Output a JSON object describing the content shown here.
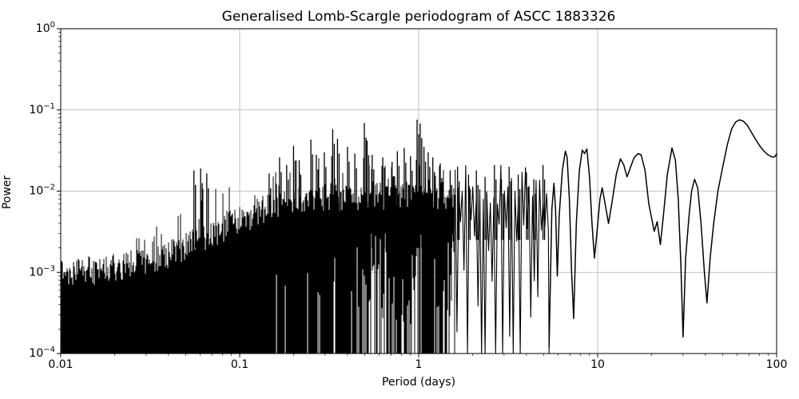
{
  "chart_data": {
    "type": "line",
    "title": "Generalised Lomb-Scargle periodogram of ASCC 1883326",
    "xlabel": "Period (days)",
    "ylabel": "Power",
    "xscale": "log",
    "yscale": "log",
    "xlim": [
      0.01,
      100
    ],
    "ylim": [
      0.0001,
      1
    ],
    "grid": true,
    "legend": "none",
    "line_color": "#000000",
    "grid_color": "#b0b0b0",
    "spine_color": "#000000",
    "background": "#ffffff",
    "x_ticks": [
      {
        "value": 0.01,
        "label": "0.01"
      },
      {
        "value": 0.1,
        "label": "0.1"
      },
      {
        "value": 1,
        "label": "1"
      },
      {
        "value": 10,
        "label": "10"
      },
      {
        "value": 100,
        "label": "100"
      }
    ],
    "y_ticks": [
      {
        "value": 1,
        "label": "10^0"
      },
      {
        "value": 0.1,
        "label": "10^-1"
      },
      {
        "value": 0.01,
        "label": "10^-2"
      },
      {
        "value": 0.001,
        "label": "10^-3"
      },
      {
        "value": 0.0001,
        "label": "10^-4"
      }
    ],
    "noise_region": {
      "x_range": [
        0.01,
        1.6
      ],
      "floor": 0.0001,
      "envelope": [
        [
          0.01,
          0.00085,
          0.0016
        ],
        [
          0.014,
          0.0009,
          0.002
        ],
        [
          0.02,
          0.001,
          0.0026
        ],
        [
          0.028,
          0.0012,
          0.0036
        ],
        [
          0.04,
          0.0015,
          0.0055
        ],
        [
          0.055,
          0.002,
          0.016
        ],
        [
          0.065,
          0.0024,
          0.018
        ],
        [
          0.08,
          0.003,
          0.014
        ],
        [
          0.1,
          0.0038,
          0.013
        ],
        [
          0.13,
          0.005,
          0.015
        ],
        [
          0.17,
          0.006,
          0.024
        ],
        [
          0.21,
          0.0065,
          0.03
        ],
        [
          0.26,
          0.007,
          0.034
        ],
        [
          0.33,
          0.0075,
          0.04
        ],
        [
          0.42,
          0.0075,
          0.03
        ],
        [
          0.52,
          0.008,
          0.034
        ],
        [
          0.65,
          0.0075,
          0.026
        ],
        [
          0.8,
          0.008,
          0.03
        ],
        [
          1.0,
          0.0085,
          0.04
        ],
        [
          1.25,
          0.008,
          0.026
        ],
        [
          1.6,
          0.0075,
          0.022
        ]
      ]
    },
    "transition_region": {
      "x_range": [
        1.6,
        5.35
      ],
      "top_range": [
        0.004,
        0.022
      ],
      "floor": 0.0001
    },
    "major_peaks": [
      [
        0.0555,
        0.018
      ],
      [
        0.0605,
        0.019
      ],
      [
        0.0655,
        0.0165
      ],
      [
        0.146,
        0.0165
      ],
      [
        0.167,
        0.026
      ],
      [
        0.183,
        0.021
      ],
      [
        0.2,
        0.036
      ],
      [
        0.215,
        0.024
      ],
      [
        0.25,
        0.043
      ],
      [
        0.268,
        0.028
      ],
      [
        0.297,
        0.03
      ],
      [
        0.331,
        0.058
      ],
      [
        0.352,
        0.044
      ],
      [
        0.4,
        0.035
      ],
      [
        0.44,
        0.029
      ],
      [
        0.497,
        0.069
      ],
      [
        0.515,
        0.042
      ],
      [
        0.55,
        0.028
      ],
      [
        0.63,
        0.026
      ],
      [
        0.71,
        0.023
      ],
      [
        0.76,
        0.031
      ],
      [
        0.83,
        0.034
      ],
      [
        0.9,
        0.027
      ],
      [
        0.98,
        0.076
      ],
      [
        1.02,
        0.068
      ],
      [
        1.07,
        0.035
      ],
      [
        1.13,
        0.03
      ],
      [
        1.2,
        0.026
      ],
      [
        1.32,
        0.022
      ],
      [
        1.5,
        0.018
      ],
      [
        1.65,
        0.02
      ],
      [
        1.9,
        0.016
      ],
      [
        2.1,
        0.018
      ],
      [
        2.35,
        0.015
      ],
      [
        2.65,
        0.021
      ],
      [
        2.9,
        0.014
      ],
      [
        3.2,
        0.02
      ],
      [
        3.6,
        0.016
      ],
      [
        4.0,
        0.017
      ],
      [
        4.4,
        0.014
      ],
      [
        4.95,
        0.021
      ]
    ],
    "smooth_curve": [
      [
        5.35,
        0.00012
      ],
      [
        5.55,
        0.006
      ],
      [
        5.7,
        0.0125
      ],
      [
        5.82,
        0.006
      ],
      [
        5.95,
        0.0009
      ],
      [
        6.1,
        0.005
      ],
      [
        6.35,
        0.018
      ],
      [
        6.6,
        0.031
      ],
      [
        6.75,
        0.026
      ],
      [
        6.95,
        0.008
      ],
      [
        7.15,
        0.001
      ],
      [
        7.35,
        0.00027
      ],
      [
        7.6,
        0.004
      ],
      [
        7.9,
        0.018
      ],
      [
        8.2,
        0.032
      ],
      [
        8.45,
        0.029
      ],
      [
        8.7,
        0.033
      ],
      [
        9.0,
        0.015
      ],
      [
        9.3,
        0.004
      ],
      [
        9.6,
        0.0015
      ],
      [
        9.9,
        0.003
      ],
      [
        10.3,
        0.008
      ],
      [
        10.6,
        0.011
      ],
      [
        11.0,
        0.007
      ],
      [
        11.5,
        0.004
      ],
      [
        12.0,
        0.007
      ],
      [
        12.7,
        0.016
      ],
      [
        13.4,
        0.025
      ],
      [
        14.0,
        0.021
      ],
      [
        14.6,
        0.015
      ],
      [
        15.3,
        0.02
      ],
      [
        16.0,
        0.026
      ],
      [
        16.8,
        0.029
      ],
      [
        17.5,
        0.028
      ],
      [
        18.4,
        0.018
      ],
      [
        19.3,
        0.007
      ],
      [
        20.7,
        0.0032
      ],
      [
        21.5,
        0.0042
      ],
      [
        22.4,
        0.0022
      ],
      [
        23.3,
        0.005
      ],
      [
        24.5,
        0.016
      ],
      [
        26.0,
        0.034
      ],
      [
        27.2,
        0.024
      ],
      [
        28.2,
        0.008
      ],
      [
        29.2,
        0.0012
      ],
      [
        30.0,
        0.00016
      ],
      [
        31.0,
        0.0015
      ],
      [
        32.4,
        0.005
      ],
      [
        33.5,
        0.01
      ],
      [
        34.8,
        0.014
      ],
      [
        36.2,
        0.011
      ],
      [
        37.8,
        0.004
      ],
      [
        39.5,
        0.001
      ],
      [
        40.8,
        0.00042
      ],
      [
        42.5,
        0.0015
      ],
      [
        44.5,
        0.004
      ],
      [
        47.0,
        0.01
      ],
      [
        50.0,
        0.02
      ],
      [
        53.0,
        0.037
      ],
      [
        56.0,
        0.058
      ],
      [
        59.0,
        0.071
      ],
      [
        62.0,
        0.0755
      ],
      [
        65.0,
        0.073
      ],
      [
        68.5,
        0.065
      ],
      [
        72.0,
        0.054
      ],
      [
        76.0,
        0.044
      ],
      [
        80.5,
        0.036
      ],
      [
        85.0,
        0.031
      ],
      [
        89.5,
        0.028
      ],
      [
        93.5,
        0.0265
      ],
      [
        96.5,
        0.0262
      ],
      [
        98.5,
        0.027
      ],
      [
        100.0,
        0.029
      ]
    ]
  }
}
